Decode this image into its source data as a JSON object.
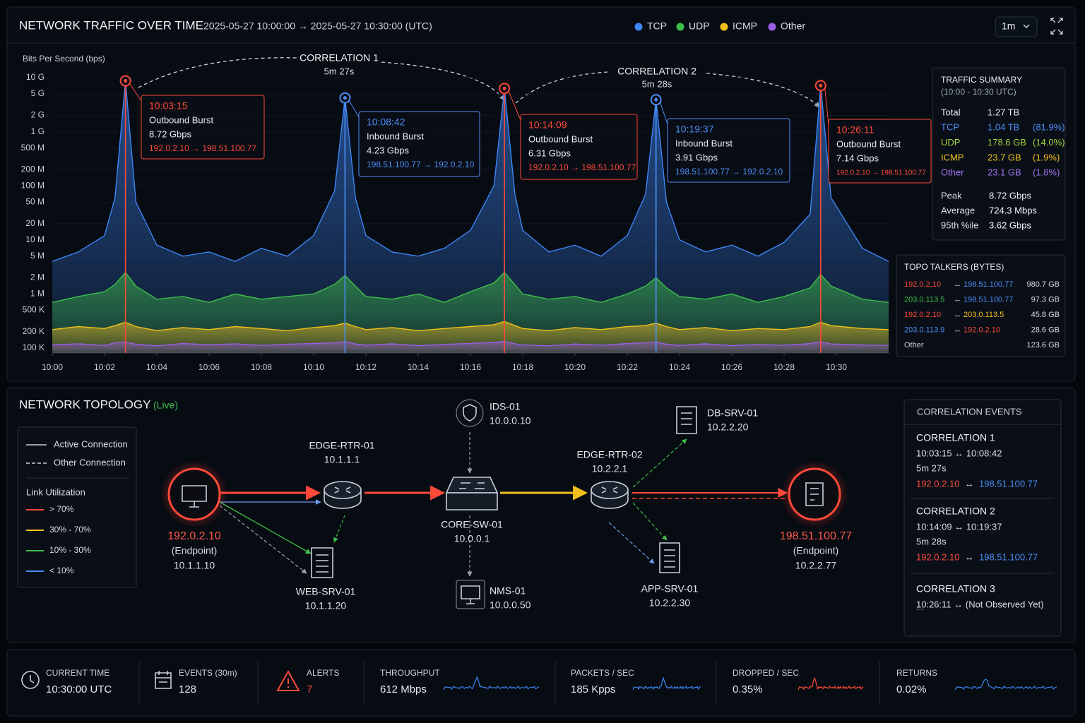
{
  "header": {
    "title": "NETWORK TRAFFIC OVER TIME",
    "range": "2025-05-27 10:00:00 → 2025-05-27 10:30:00  (UTC)",
    "interval": "1m"
  },
  "chart_data": {
    "type": "area",
    "y_label": "Bits Per Second (bps)",
    "log_y": true,
    "grid": true,
    "x": [
      0,
      1,
      2,
      2.4,
      2.8,
      3.2,
      4,
      5,
      6,
      7,
      8,
      9,
      10,
      10.8,
      11.2,
      11.6,
      12,
      13,
      14,
      15,
      16,
      16.9,
      17.3,
      17.7,
      18,
      19,
      20,
      21,
      22,
      22.7,
      23.1,
      23.5,
      24,
      25,
      26,
      27,
      28,
      29,
      29.4,
      29.8,
      31,
      32
    ],
    "xlim": [
      0,
      32
    ],
    "xticks": [
      {
        "value": 0,
        "label": "10:00"
      },
      {
        "value": 2,
        "label": "10:02"
      },
      {
        "value": 4,
        "label": "10:04"
      },
      {
        "value": 6,
        "label": "10:06"
      },
      {
        "value": 8,
        "label": "10:08"
      },
      {
        "value": 10,
        "label": "10:10"
      },
      {
        "value": 12,
        "label": "10:12"
      },
      {
        "value": 14,
        "label": "10:14"
      },
      {
        "value": 16,
        "label": "10:16"
      },
      {
        "value": 18,
        "label": "10:18"
      },
      {
        "value": 20,
        "label": "10:20"
      },
      {
        "value": 22,
        "label": "10:22"
      },
      {
        "value": 24,
        "label": "10:24"
      },
      {
        "value": 26,
        "label": "10:26"
      },
      {
        "value": 28,
        "label": "10:28"
      },
      {
        "value": 30,
        "label": "10:30"
      }
    ],
    "ylim": [
      81000,
      13500000000
    ],
    "yticks": [
      {
        "value": 100000,
        "label": "100 K"
      },
      {
        "value": 200000,
        "label": "200 K"
      },
      {
        "value": 500000,
        "label": "500 K"
      },
      {
        "value": 1000000,
        "label": "1 M"
      },
      {
        "value": 2000000,
        "label": "2 M"
      },
      {
        "value": 5000000,
        "label": "5 M"
      },
      {
        "value": 10000000,
        "label": "10 M"
      },
      {
        "value": 20000000,
        "label": "20 M"
      },
      {
        "value": 50000000,
        "label": "50 M"
      },
      {
        "value": 100000000,
        "label": "100 M"
      },
      {
        "value": 200000000,
        "label": "200 M"
      },
      {
        "value": 500000000,
        "label": "500 M"
      },
      {
        "value": 1000000000,
        "label": "1 G"
      },
      {
        "value": 2000000000,
        "label": "2 G"
      },
      {
        "value": 5000000000,
        "label": "5 G"
      },
      {
        "value": 10000000000,
        "label": "10 G"
      }
    ],
    "series": [
      {
        "name": "TCP",
        "color": "#3d86f5",
        "values": [
          4000000,
          6000000,
          12000000,
          60000000,
          8720000000,
          50000000,
          8000000,
          5000000,
          6000000,
          4000000,
          7000000,
          5000000,
          12000000,
          80000000,
          4230000000,
          60000000,
          12000000,
          6000000,
          5000000,
          7000000,
          15000000,
          100000000,
          6310000000,
          70000000,
          15000000,
          6000000,
          8000000,
          5000000,
          12000000,
          70000000,
          3910000000,
          50000000,
          10000000,
          6000000,
          8000000,
          5000000,
          9000000,
          30000000,
          7140000000,
          60000000,
          7000000,
          4000000
        ]
      },
      {
        "name": "UDP",
        "color": "#3fbf4a",
        "values": [
          700000,
          900000,
          1100000,
          1500000,
          2500000,
          1400000,
          800000,
          900000,
          700000,
          1000000,
          800000,
          900000,
          1000000,
          1500000,
          2200000,
          1400000,
          900000,
          800000,
          1000000,
          700000,
          1100000,
          1600000,
          2500000,
          1500000,
          1000000,
          800000,
          900000,
          700000,
          1000000,
          1400000,
          2000000,
          1300000,
          900000,
          800000,
          1000000,
          700000,
          900000,
          1300000,
          2300000,
          1400000,
          800000,
          700000
        ]
      },
      {
        "name": "ICMP",
        "color": "#f2c01c",
        "values": [
          220000,
          250000,
          230000,
          260000,
          300000,
          250000,
          210000,
          240000,
          220000,
          250000,
          230000,
          210000,
          240000,
          260000,
          290000,
          250000,
          220000,
          240000,
          210000,
          230000,
          250000,
          270000,
          310000,
          260000,
          230000,
          210000,
          240000,
          220000,
          250000,
          260000,
          290000,
          250000,
          220000,
          240000,
          210000,
          230000,
          220000,
          250000,
          300000,
          260000,
          230000,
          220000
        ]
      },
      {
        "name": "Other",
        "color": "#9b5de5",
        "values": [
          115000,
          120000,
          112000,
          125000,
          130000,
          118000,
          110000,
          122000,
          115000,
          120000,
          112000,
          118000,
          121000,
          126000,
          132000,
          119000,
          113000,
          120000,
          111000,
          117000,
          122000,
          127000,
          133000,
          120000,
          114000,
          110000,
          119000,
          113000,
          121000,
          125000,
          130000,
          118000,
          112000,
          120000,
          111000,
          116000,
          113000,
          121000,
          131000,
          119000,
          114000,
          112000
        ]
      }
    ],
    "annotations": [
      {
        "time": "10:03:15",
        "label": "Outbound Burst",
        "rate": "8.72 Gbps",
        "flow": "192.0.2.10 → 198.51.100.77",
        "color": "#ff4a3a"
      },
      {
        "time": "10:08:42",
        "label": "Inbound Burst",
        "rate": "4.23 Gbps",
        "flow": "198.51.100.77 → 192.0.2.10",
        "color": "#4d8ef7"
      },
      {
        "time": "10:14:09",
        "label": "Outbound Burst",
        "rate": "6.31 Gbps",
        "flow": "192.0.2.10 → 198.51.100.77",
        "color": "#ff4a3a"
      },
      {
        "time": "10:19:37",
        "label": "Inbound Burst",
        "rate": "3.91 Gbps",
        "flow": "198.51.100.77 → 192.0.2.10",
        "color": "#4d8ef7"
      },
      {
        "time": "10:26:11",
        "label": "Outbound Burst",
        "rate": "7.14 Gbps",
        "flow": "192.0.2.10 → 198.51.100.77",
        "color": "#ff4a3a"
      }
    ],
    "correlations": [
      {
        "label": "CORRELATION 1",
        "duration": "5m 27s"
      },
      {
        "label": "CORRELATION 2",
        "duration": "5m 28s"
      }
    ]
  },
  "traffic_summary": {
    "title": "TRAFFIC SUMMARY",
    "period": "(10:00 - 10:30 UTC)",
    "rows": [
      {
        "label": "Total",
        "value": "1.27 TB",
        "color": "#e6ebf2"
      },
      {
        "label": "TCP",
        "value": "1.04 TB",
        "share": "(81.9%)",
        "color": "#4d8ef7"
      },
      {
        "label": "UDP",
        "value": "178.6 GB",
        "share": "(14.0%)",
        "color": "#9fd53a"
      },
      {
        "label": "ICMP",
        "value": "23.7 GB",
        "share": "(1.9%)",
        "color": "#f2c01c"
      },
      {
        "label": "Other",
        "value": "23.1 GB",
        "share": "(1.8%)",
        "color": "#a070ea"
      }
    ],
    "stats": [
      {
        "label": "Peak",
        "value": "8.72 Gbps"
      },
      {
        "label": "Average",
        "value": "724.3 Mbps"
      },
      {
        "label": "95th %ile",
        "value": "3.62 Gbps"
      }
    ]
  },
  "top_talkers": {
    "title": "TOPO TALKERS (BYTES)",
    "rows": [
      {
        "src": "192.0.2.10",
        "src_color": "#ff4a3a",
        "arrow": "↔",
        "dst": "198.51.100.77",
        "dst_color": "#4d8ef7",
        "bytes": "980.7 GB"
      },
      {
        "src": "203.0.113.5",
        "src_color": "#3fbf4a",
        "arrow": "↔",
        "dst": "198.51.100.77",
        "dst_color": "#4d8ef7",
        "bytes": "97.3 GB"
      },
      {
        "src": "192.0.2.10",
        "src_color": "#ff4a3a",
        "arrow": "↔",
        "dst": "203.0.113.5",
        "dst_color": "#f2c01c",
        "bytes": "45.8 GB"
      },
      {
        "src": "203.0.113.9",
        "src_color": "#4d8ef7",
        "arrow": "↔",
        "dst": "192.0.2.10",
        "dst_color": "#ff4a3a",
        "bytes": "28.6 GB"
      },
      {
        "src": "Other",
        "src_color": "#c9d1dc",
        "bytes": "123.6 GB"
      }
    ]
  },
  "topology": {
    "title": "NETWORK TOPOLOGY",
    "status": "(Live)",
    "legend": {
      "active": "Active Connection",
      "other": "Other Connection",
      "utilization_title": "Link Utilization",
      "levels": [
        {
          "label": "> 70%",
          "color": "#ff4a3a"
        },
        {
          "label": "30% - 70%",
          "color": "#f2c01c"
        },
        {
          "label": "10% - 30%",
          "color": "#3fbf4a"
        },
        {
          "label": "< 10%",
          "color": "#4d8ef7"
        }
      ]
    },
    "nodes": [
      {
        "name": "192.0.2.10",
        "role": "(Endpoint)",
        "ip": "10.1.1.10"
      },
      {
        "name": "EDGE-RTR-01",
        "ip": "10.1.1.1"
      },
      {
        "name": "WEB-SRV-01",
        "ip": "10.1.1.20"
      },
      {
        "name": "CORE-SW-01",
        "ip": "10.0.0.1"
      },
      {
        "name": "IDS-01",
        "ip": "10.0.0.10"
      },
      {
        "name": "NMS-01",
        "ip": "10.0.0.50"
      },
      {
        "name": "EDGE-RTR-02",
        "ip": "10.2.2.1"
      },
      {
        "name": "DB-SRV-01",
        "ip": "10.2.2.20"
      },
      {
        "name": "APP-SRV-01",
        "ip": "10.2.2.30"
      },
      {
        "name": "198.51.100.77",
        "role": "(Endpoint)",
        "ip": "10.2.2.77"
      }
    ]
  },
  "correlation_events": {
    "title": "CORRELATION EVENTS",
    "items": [
      {
        "title": "CORRELATION 1",
        "times": "10:03:15  ↔  10:08:42",
        "duration": "5m 27s",
        "src": "192.0.2.10",
        "arrow": "↔",
        "dst": "198.51.100.77"
      },
      {
        "title": "CORRELATION 2",
        "times": "10:14:09  ↔  10:19:37",
        "duration": "5m 28s",
        "src": "192.0.2.10",
        "arrow": "↔",
        "dst": "198.51.100.77"
      },
      {
        "title": "CORRELATION 3",
        "times": "10:26:11  ↔  (Not Observed Yet)",
        "more": "..."
      }
    ]
  },
  "status_bar": [
    {
      "label": "CURRENT TIME",
      "value": "10:30:00 UTC"
    },
    {
      "label": "EVENTS (30m)",
      "value": "128"
    },
    {
      "label": "ALERTS",
      "value": "7"
    },
    {
      "label": "THROUGHPUT",
      "value": "612 Mbps"
    },
    {
      "label": "PACKETS / SEC",
      "value": "185 Kpps"
    },
    {
      "label": "DROPPED / SEC",
      "value": "0.35%"
    },
    {
      "label": "RETURNS",
      "value": "0.02%"
    }
  ]
}
